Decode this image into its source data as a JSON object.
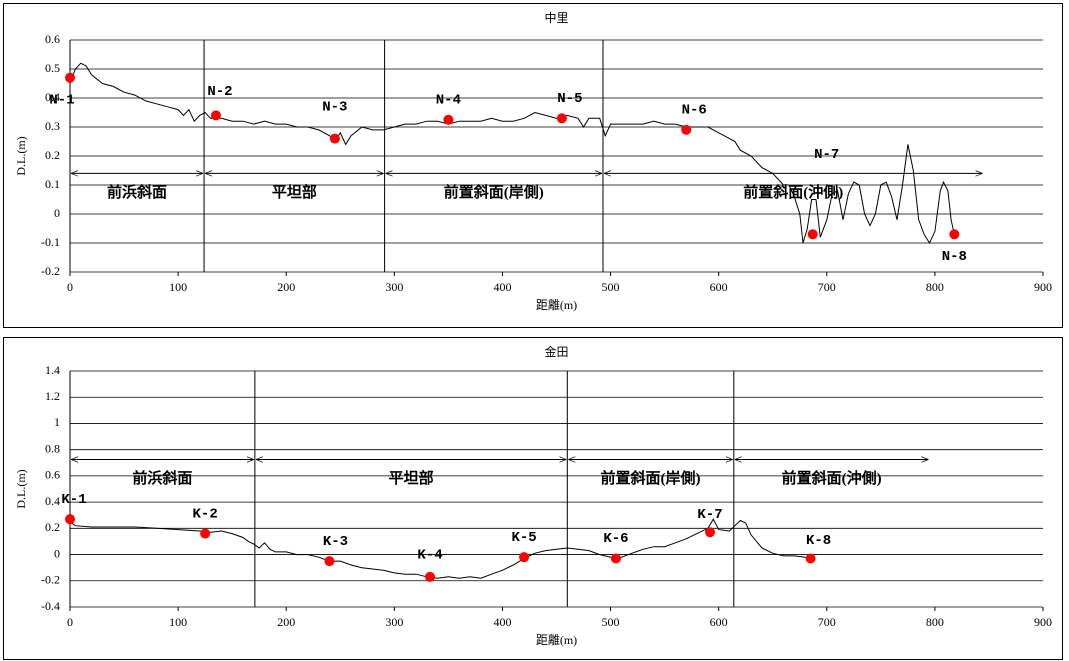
{
  "chart_data": [
    {
      "type": "line",
      "title": "中里",
      "x_label": "距離(m)",
      "y_label": "D.L.(m)",
      "xlim": [
        0,
        900
      ],
      "xticks": [
        0,
        100,
        200,
        300,
        400,
        500,
        600,
        700,
        800,
        900
      ],
      "ylim": [
        -0.2,
        0.6
      ],
      "yticks": [
        -0.2,
        -0.1,
        0,
        0.1,
        0.2,
        0.3,
        0.4,
        0.5,
        0.6
      ],
      "grid": true,
      "profile": {
        "color": "#000000",
        "x": [
          0,
          5,
          10,
          15,
          20,
          30,
          40,
          50,
          60,
          70,
          80,
          90,
          100,
          105,
          110,
          115,
          120,
          125,
          130,
          140,
          150,
          160,
          170,
          180,
          190,
          200,
          210,
          220,
          230,
          240,
          245,
          250,
          255,
          260,
          270,
          280,
          290,
          300,
          310,
          320,
          330,
          340,
          350,
          360,
          370,
          380,
          390,
          400,
          410,
          420,
          430,
          440,
          450,
          460,
          470,
          475,
          480,
          490,
          495,
          500,
          510,
          520,
          530,
          540,
          550,
          560,
          570,
          580,
          590,
          600,
          610,
          615,
          620,
          630,
          640,
          650,
          660,
          665,
          670,
          675,
          678,
          682,
          686,
          690,
          694,
          700,
          705,
          710,
          715,
          720,
          725,
          730,
          735,
          740,
          745,
          750,
          755,
          760,
          765,
          770,
          775,
          780,
          785,
          790,
          795,
          800,
          805,
          808,
          812,
          815,
          818
        ],
        "values": [
          0.45,
          0.5,
          0.52,
          0.51,
          0.48,
          0.45,
          0.44,
          0.42,
          0.41,
          0.39,
          0.38,
          0.37,
          0.36,
          0.34,
          0.36,
          0.32,
          0.34,
          0.35,
          0.33,
          0.33,
          0.32,
          0.32,
          0.31,
          0.32,
          0.31,
          0.31,
          0.3,
          0.3,
          0.29,
          0.27,
          0.25,
          0.28,
          0.24,
          0.27,
          0.3,
          0.29,
          0.29,
          0.3,
          0.31,
          0.31,
          0.32,
          0.32,
          0.31,
          0.32,
          0.32,
          0.32,
          0.33,
          0.32,
          0.32,
          0.33,
          0.35,
          0.34,
          0.33,
          0.34,
          0.33,
          0.3,
          0.33,
          0.33,
          0.27,
          0.31,
          0.31,
          0.31,
          0.31,
          0.32,
          0.31,
          0.31,
          0.3,
          0.3,
          0.3,
          0.28,
          0.26,
          0.25,
          0.22,
          0.2,
          0.16,
          0.14,
          0.1,
          0.1,
          0.06,
          0.0,
          -0.1,
          -0.05,
          0.05,
          0.05,
          -0.08,
          -0.02,
          0.07,
          0.08,
          -0.02,
          0.07,
          0.11,
          0.1,
          0.0,
          -0.04,
          0.0,
          0.1,
          0.11,
          0.06,
          -0.02,
          0.1,
          0.24,
          0.15,
          -0.02,
          -0.07,
          -0.1,
          -0.06,
          0.08,
          0.11,
          0.08,
          -0.02,
          -0.07
        ]
      },
      "points": {
        "color": "#ff0000",
        "labels": [
          "N-1",
          "N-2",
          "N-3",
          "N-4",
          "N-5",
          "N-6",
          "N-7",
          "N-8"
        ],
        "x": [
          0,
          135,
          245,
          350,
          455,
          570,
          687,
          818
        ],
        "values": [
          0.47,
          0.34,
          0.26,
          0.325,
          0.33,
          0.29,
          -0.07,
          -0.07
        ]
      },
      "zones": [
        {
          "name": "前浜斜面",
          "range": [
            0,
            124
          ]
        },
        {
          "name": "平坦部",
          "range": [
            124,
            291
          ]
        },
        {
          "name": "前置斜面(岸側)",
          "range": [
            291,
            493
          ]
        },
        {
          "name": "前置斜面(沖側)",
          "range": [
            493,
            845
          ]
        }
      ]
    },
    {
      "type": "line",
      "title": "金田",
      "x_label": "距離(m)",
      "y_label": "D.L.(m)",
      "xlim": [
        0,
        900
      ],
      "xticks": [
        0,
        100,
        200,
        300,
        400,
        500,
        600,
        700,
        800,
        900
      ],
      "ylim": [
        -0.4,
        1.4
      ],
      "yticks": [
        -0.4,
        -0.2,
        0,
        0.2,
        0.4,
        0.6,
        0.8,
        1,
        1.2,
        1.4
      ],
      "grid": true,
      "profile": {
        "color": "#000000",
        "x": [
          0,
          5,
          20,
          40,
          60,
          80,
          100,
          120,
          130,
          140,
          150,
          160,
          165,
          170,
          175,
          180,
          185,
          190,
          200,
          210,
          220,
          230,
          240,
          250,
          260,
          270,
          280,
          290,
          300,
          310,
          320,
          330,
          340,
          350,
          360,
          370,
          380,
          390,
          400,
          410,
          420,
          430,
          440,
          450,
          460,
          470,
          480,
          490,
          500,
          510,
          520,
          530,
          540,
          550,
          560,
          570,
          580,
          590,
          595,
          600,
          610,
          615,
          620,
          625,
          630,
          640,
          650,
          660,
          670,
          680,
          685
        ],
        "values": [
          0.25,
          0.22,
          0.21,
          0.21,
          0.21,
          0.2,
          0.19,
          0.18,
          0.17,
          0.18,
          0.16,
          0.13,
          0.1,
          0.08,
          0.05,
          0.09,
          0.04,
          0.02,
          0.02,
          0.0,
          0.0,
          -0.02,
          -0.05,
          -0.05,
          -0.08,
          -0.1,
          -0.11,
          -0.12,
          -0.14,
          -0.15,
          -0.15,
          -0.17,
          -0.18,
          -0.17,
          -0.18,
          -0.17,
          -0.18,
          -0.15,
          -0.12,
          -0.08,
          -0.03,
          0.01,
          0.03,
          0.04,
          0.05,
          0.04,
          0.03,
          0.0,
          -0.02,
          -0.02,
          0.01,
          0.04,
          0.06,
          0.06,
          0.09,
          0.12,
          0.16,
          0.2,
          0.27,
          0.19,
          0.18,
          0.22,
          0.26,
          0.24,
          0.15,
          0.05,
          0.01,
          -0.01,
          -0.01,
          -0.02,
          -0.03
        ]
      },
      "points": {
        "color": "#ff0000",
        "labels": [
          "K-1",
          "K-2",
          "K-3",
          "K-4",
          "K-5",
          "K-6",
          "K-7",
          "K-8"
        ],
        "x": [
          0,
          125,
          240,
          333,
          420,
          505,
          592,
          685
        ],
        "values": [
          0.27,
          0.16,
          -0.05,
          -0.17,
          -0.02,
          -0.03,
          0.17,
          -0.03
        ]
      },
      "zones": [
        {
          "name": "前浜斜面",
          "range": [
            0,
            171
          ]
        },
        {
          "name": "平坦部",
          "range": [
            171,
            460
          ]
        },
        {
          "name": "前置斜面(岸側)",
          "range": [
            460,
            614
          ]
        },
        {
          "name": "前置斜面(沖側)",
          "range": [
            614,
            795
          ]
        }
      ]
    }
  ]
}
